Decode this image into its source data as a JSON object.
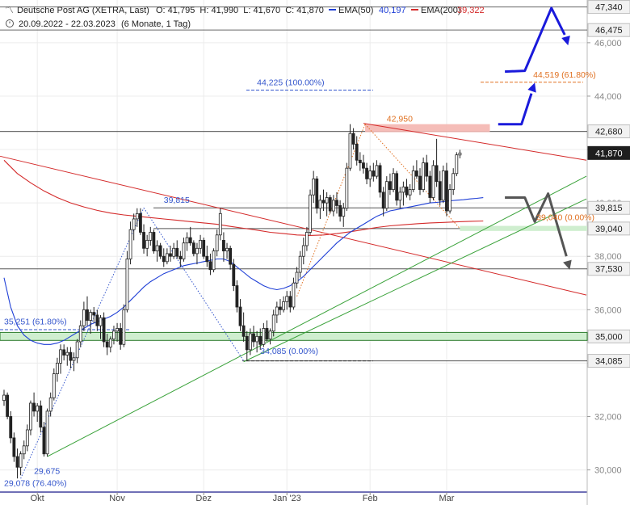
{
  "header": {
    "instrument": "Deutsche Post AG (XETRA, Last)",
    "ohlc": "O: 41,795  H: 41,990  L: 41,670  C: 41,870",
    "ema50_label": "EMA(50)",
    "ema50_value": "40,197",
    "ema200_label": "EMA(200)",
    "ema200_value": "39,322",
    "period": "20.09.2022 - 22.03.2023",
    "range": "(6 Monate, 1 Tag)"
  },
  "colors": {
    "up": "#ffffff",
    "down": "#222222",
    "ema50": "#1f3fd6",
    "ema200": "#d42a2a",
    "support": "#3aa23a",
    "resistance": "#d42a2a",
    "fib": "#3355cc",
    "fib_orange": "#e07020",
    "scenario_bull": "#1a1adb",
    "scenario_bear": "#555555",
    "level_line": "#555555"
  },
  "chart_data": {
    "type": "candlestick",
    "ylim": [
      29.2,
      47.6
    ],
    "xlim": [
      0,
      180
    ],
    "y_ticks": [
      30,
      32,
      34,
      36,
      38,
      40,
      42,
      44,
      46
    ],
    "y_tick_labels": [
      "30,000",
      "32,000",
      "34,000",
      "36,000",
      "38,000",
      "40,000",
      "42,000",
      "44,000",
      "46,000"
    ],
    "x_ticks": [
      {
        "x": 10,
        "label": "Okt"
      },
      {
        "x": 34,
        "label": "Nov"
      },
      {
        "x": 60,
        "label": "Dez"
      },
      {
        "x": 85,
        "label": "Jan '23"
      },
      {
        "x": 110,
        "label": "Feb"
      },
      {
        "x": 133,
        "label": "Mar"
      }
    ],
    "price_labels": [
      {
        "label": "47,340",
        "y": 47.34,
        "style": "level"
      },
      {
        "label": "46,475",
        "y": 46.475,
        "style": "level"
      },
      {
        "label": "42,680",
        "y": 42.68,
        "style": "level"
      },
      {
        "label": "41,870",
        "y": 41.87,
        "style": "current"
      },
      {
        "label": "39,815",
        "y": 39.815,
        "style": "level"
      },
      {
        "label": "39,040",
        "y": 39.04,
        "style": "level"
      },
      {
        "label": "37,530",
        "y": 37.53,
        "style": "level"
      },
      {
        "label": "35,000",
        "y": 35.0,
        "style": "level"
      },
      {
        "label": "34,085",
        "y": 34.085,
        "style": "level"
      }
    ],
    "annotations": [
      {
        "text": "44,225 (100.00%)",
        "x": 76,
        "y": 44.4,
        "color": "fib"
      },
      {
        "text": "44,519 (61.80%)",
        "x": 159,
        "y": 44.7,
        "color": "fib_orange"
      },
      {
        "text": "42,950",
        "x": 115,
        "y": 43.05,
        "color": "fib_orange"
      },
      {
        "text": "39,815",
        "x": 48,
        "y": 40.0,
        "color": "fib"
      },
      {
        "text": "39,040 (0.00%)",
        "x": 160,
        "y": 39.35,
        "color": "fib_orange"
      },
      {
        "text": "35,251 (61.80%)",
        "x": 1,
        "y": 35.45,
        "color": "fib"
      },
      {
        "text": "34,085 (0.00%)",
        "x": 77,
        "y": 34.35,
        "color": "fib"
      },
      {
        "text": "29,675",
        "x": 9,
        "y": 29.85,
        "color": "fib"
      },
      {
        "text": "29,078 (76.40%)",
        "x": 1,
        "y": 29.4,
        "color": "fib"
      }
    ],
    "candles": [
      [
        32.6,
        33.0,
        32.4,
        32.8
      ],
      [
        32.8,
        32.9,
        31.9,
        32.0
      ],
      [
        32.0,
        32.2,
        31.0,
        31.2
      ],
      [
        31.2,
        31.4,
        30.3,
        30.5
      ],
      [
        30.5,
        30.8,
        29.68,
        30.1
      ],
      [
        30.1,
        30.7,
        29.8,
        30.6
      ],
      [
        30.6,
        31.1,
        30.4,
        30.9
      ],
      [
        30.9,
        31.7,
        30.7,
        31.5
      ],
      [
        31.5,
        32.6,
        31.3,
        32.5
      ],
      [
        32.5,
        32.9,
        32.0,
        32.2
      ],
      [
        32.2,
        32.5,
        31.8,
        32.4
      ],
      [
        32.4,
        32.6,
        31.4,
        31.6
      ],
      [
        31.6,
        31.8,
        30.5,
        30.6
      ],
      [
        30.6,
        32.3,
        30.5,
        32.2
      ],
      [
        32.2,
        32.9,
        32.0,
        32.7
      ],
      [
        32.7,
        33.8,
        32.6,
        33.6
      ],
      [
        33.6,
        34.2,
        33.3,
        34.0
      ],
      [
        34.0,
        34.7,
        33.6,
        34.5
      ],
      [
        34.5,
        34.7,
        34.1,
        34.3
      ],
      [
        34.3,
        34.6,
        33.9,
        34.4
      ],
      [
        34.4,
        34.6,
        33.8,
        34.1
      ],
      [
        34.1,
        34.4,
        33.7,
        34.2
      ],
      [
        34.2,
        34.9,
        34.0,
        34.8
      ],
      [
        34.8,
        35.6,
        34.6,
        35.4
      ],
      [
        35.4,
        36.3,
        35.2,
        36.0
      ],
      [
        36.0,
        36.5,
        35.4,
        35.6
      ],
      [
        35.6,
        36.0,
        35.1,
        35.9
      ],
      [
        35.9,
        36.1,
        35.5,
        35.8
      ],
      [
        35.8,
        36.0,
        35.2,
        35.4
      ],
      [
        35.4,
        35.8,
        34.9,
        35.7
      ],
      [
        35.7,
        35.9,
        34.6,
        34.8
      ],
      [
        34.8,
        35.1,
        34.3,
        34.6
      ],
      [
        34.6,
        35.0,
        34.4,
        34.9
      ],
      [
        34.9,
        35.4,
        34.7,
        35.2
      ],
      [
        35.2,
        35.5,
        34.8,
        35.3
      ],
      [
        35.3,
        35.5,
        34.5,
        34.7
      ],
      [
        34.7,
        36.2,
        34.6,
        36.0
      ],
      [
        36.0,
        38.2,
        35.9,
        37.9
      ],
      [
        37.9,
        39.3,
        37.7,
        39.0
      ],
      [
        39.0,
        39.6,
        38.6,
        39.4
      ],
      [
        39.4,
        39.8,
        39.1,
        39.6
      ],
      [
        39.6,
        39.8,
        38.8,
        38.9
      ],
      [
        38.9,
        39.2,
        38.1,
        38.3
      ],
      [
        38.3,
        38.8,
        38.0,
        38.6
      ],
      [
        38.6,
        39.1,
        38.4,
        38.9
      ],
      [
        38.9,
        39.0,
        38.1,
        38.2
      ],
      [
        38.2,
        38.6,
        37.8,
        38.4
      ],
      [
        38.4,
        38.5,
        37.9,
        38.0
      ],
      [
        38.0,
        38.3,
        37.6,
        37.8
      ],
      [
        37.8,
        38.3,
        37.7,
        38.1
      ],
      [
        38.1,
        38.4,
        37.8,
        38.0
      ],
      [
        38.0,
        38.5,
        37.9,
        38.3
      ],
      [
        38.3,
        38.6,
        37.9,
        38.0
      ],
      [
        38.0,
        38.2,
        37.6,
        37.9
      ],
      [
        37.9,
        38.7,
        37.8,
        38.5
      ],
      [
        38.5,
        38.9,
        38.2,
        38.7
      ],
      [
        38.7,
        39.1,
        38.4,
        38.5
      ],
      [
        38.5,
        38.6,
        38.0,
        38.1
      ],
      [
        38.1,
        38.5,
        37.7,
        38.3
      ],
      [
        38.3,
        38.8,
        38.1,
        38.6
      ],
      [
        38.6,
        38.7,
        37.9,
        38.0
      ],
      [
        38.0,
        38.4,
        37.6,
        37.8
      ],
      [
        37.8,
        38.1,
        37.3,
        37.5
      ],
      [
        37.5,
        38.3,
        37.4,
        38.2
      ],
      [
        38.2,
        39.0,
        38.0,
        38.8
      ],
      [
        38.8,
        39.8,
        38.6,
        39.6
      ],
      [
        38.6,
        38.9,
        37.8,
        38.2
      ],
      [
        38.2,
        38.5,
        37.9,
        38.3
      ],
      [
        38.3,
        38.4,
        37.5,
        37.7
      ],
      [
        37.7,
        37.9,
        36.7,
        36.9
      ],
      [
        36.9,
        37.1,
        35.9,
        36.1
      ],
      [
        36.1,
        36.4,
        35.2,
        35.4
      ],
      [
        35.4,
        35.9,
        34.8,
        35.0
      ],
      [
        35.0,
        35.2,
        34.09,
        34.5
      ],
      [
        34.5,
        35.3,
        34.3,
        35.1
      ],
      [
        35.1,
        35.4,
        34.6,
        34.8
      ],
      [
        34.8,
        35.2,
        34.4,
        35.0
      ],
      [
        35.0,
        35.3,
        34.5,
        34.7
      ],
      [
        34.7,
        35.5,
        34.6,
        35.3
      ],
      [
        35.3,
        35.6,
        34.8,
        34.9
      ],
      [
        34.9,
        35.3,
        34.7,
        35.2
      ],
      [
        35.2,
        36.0,
        35.0,
        35.8
      ],
      [
        35.8,
        36.3,
        35.5,
        36.1
      ],
      [
        36.1,
        36.4,
        35.8,
        36.0
      ],
      [
        36.0,
        36.5,
        35.9,
        36.3
      ],
      [
        36.3,
        36.7,
        36.0,
        36.5
      ],
      [
        36.5,
        36.7,
        35.9,
        36.1
      ],
      [
        36.1,
        37.2,
        36.0,
        37.0
      ],
      [
        37.0,
        37.6,
        36.8,
        37.4
      ],
      [
        37.4,
        38.2,
        37.2,
        38.0
      ],
      [
        38.0,
        38.7,
        37.7,
        38.4
      ],
      [
        38.4,
        39.1,
        38.2,
        38.9
      ],
      [
        38.9,
        40.5,
        38.8,
        40.3
      ],
      [
        40.3,
        41.2,
        40.0,
        40.9
      ],
      [
        40.9,
        41.0,
        39.6,
        39.8
      ],
      [
        39.8,
        40.3,
        39.4,
        40.1
      ],
      [
        40.1,
        40.5,
        39.7,
        40.0
      ],
      [
        40.0,
        40.4,
        39.5,
        40.2
      ],
      [
        40.2,
        40.3,
        39.6,
        39.7
      ],
      [
        39.7,
        40.3,
        39.5,
        40.1
      ],
      [
        40.1,
        40.4,
        39.6,
        39.9
      ],
      [
        39.9,
        40.1,
        39.3,
        39.5
      ],
      [
        39.5,
        40.0,
        39.1,
        39.8
      ],
      [
        39.8,
        41.5,
        39.7,
        41.3
      ],
      [
        41.3,
        42.95,
        41.2,
        42.6
      ],
      [
        42.6,
        42.8,
        42.0,
        42.2
      ],
      [
        42.2,
        42.5,
        41.4,
        41.6
      ],
      [
        41.6,
        41.9,
        41.2,
        41.5
      ],
      [
        41.5,
        41.8,
        41.1,
        41.3
      ],
      [
        41.3,
        41.5,
        40.7,
        40.9
      ],
      [
        40.9,
        41.4,
        40.6,
        41.2
      ],
      [
        41.2,
        41.5,
        40.8,
        41.0
      ],
      [
        41.0,
        41.6,
        40.9,
        41.4
      ],
      [
        41.4,
        41.5,
        40.2,
        40.4
      ],
      [
        40.4,
        40.6,
        39.5,
        39.8
      ],
      [
        39.8,
        41.0,
        39.7,
        40.8
      ],
      [
        40.8,
        41.1,
        40.3,
        40.5
      ],
      [
        40.5,
        41.3,
        40.4,
        41.1
      ],
      [
        41.1,
        41.2,
        39.9,
        40.1
      ],
      [
        40.1,
        40.6,
        39.8,
        40.4
      ],
      [
        40.4,
        40.8,
        39.9,
        40.6
      ],
      [
        40.6,
        40.9,
        40.2,
        40.3
      ],
      [
        40.3,
        40.7,
        40.1,
        40.5
      ],
      [
        40.5,
        41.4,
        40.4,
        41.2
      ],
      [
        41.2,
        41.6,
        40.9,
        41.0
      ],
      [
        41.0,
        41.3,
        40.3,
        40.5
      ],
      [
        40.5,
        41.7,
        40.4,
        41.5
      ],
      [
        41.5,
        41.8,
        40.8,
        41.0
      ],
      [
        41.0,
        41.2,
        40.0,
        40.2
      ],
      [
        40.2,
        41.6,
        40.1,
        41.4
      ],
      [
        41.4,
        42.4,
        40.6,
        40.8
      ],
      [
        40.8,
        41.2,
        39.9,
        40.1
      ],
      [
        40.1,
        41.4,
        40.0,
        41.2
      ],
      [
        41.2,
        41.5,
        39.5,
        39.7
      ],
      [
        39.7,
        40.7,
        39.6,
        40.5
      ],
      [
        40.5,
        41.3,
        40.3,
        41.1
      ],
      [
        41.1,
        41.9,
        41.0,
        41.8
      ],
      [
        41.795,
        41.99,
        41.67,
        41.87
      ]
    ],
    "ema50": [
      [
        0,
        37.2
      ],
      [
        2,
        36.1
      ],
      [
        4,
        35.4
      ],
      [
        6,
        35.05
      ],
      [
        8,
        34.85
      ],
      [
        10,
        34.75
      ],
      [
        12,
        34.7
      ],
      [
        14,
        34.7
      ],
      [
        16,
        34.75
      ],
      [
        18,
        34.85
      ],
      [
        20,
        35.0
      ],
      [
        22,
        35.15
      ],
      [
        24,
        35.3
      ],
      [
        26,
        35.45
      ],
      [
        28,
        35.55
      ],
      [
        30,
        35.65
      ],
      [
        32,
        35.75
      ],
      [
        34,
        35.9
      ],
      [
        36,
        36.1
      ],
      [
        38,
        36.35
      ],
      [
        40,
        36.6
      ],
      [
        42,
        36.85
      ],
      [
        44,
        37.05
      ],
      [
        46,
        37.2
      ],
      [
        48,
        37.35
      ],
      [
        50,
        37.45
      ],
      [
        52,
        37.55
      ],
      [
        54,
        37.65
      ],
      [
        56,
        37.7
      ],
      [
        58,
        37.75
      ],
      [
        60,
        37.8
      ],
      [
        62,
        37.85
      ],
      [
        64,
        37.9
      ],
      [
        66,
        37.9
      ],
      [
        68,
        37.8
      ],
      [
        70,
        37.6
      ],
      [
        72,
        37.4
      ],
      [
        74,
        37.2
      ],
      [
        76,
        37.05
      ],
      [
        78,
        36.9
      ],
      [
        80,
        36.8
      ],
      [
        82,
        36.75
      ],
      [
        84,
        36.8
      ],
      [
        86,
        36.9
      ],
      [
        88,
        37.05
      ],
      [
        90,
        37.25
      ],
      [
        92,
        37.5
      ],
      [
        94,
        37.75
      ],
      [
        96,
        38.0
      ],
      [
        98,
        38.25
      ],
      [
        100,
        38.5
      ],
      [
        102,
        38.7
      ],
      [
        104,
        38.9
      ],
      [
        106,
        39.05
      ],
      [
        108,
        39.2
      ],
      [
        110,
        39.35
      ],
      [
        112,
        39.5
      ],
      [
        114,
        39.6
      ],
      [
        116,
        39.7
      ],
      [
        118,
        39.75
      ],
      [
        120,
        39.8
      ],
      [
        122,
        39.85
      ],
      [
        124,
        39.9
      ],
      [
        126,
        39.95
      ],
      [
        128,
        40.0
      ],
      [
        130,
        40.02
      ],
      [
        132,
        40.05
      ],
      [
        134,
        40.08
      ],
      [
        136,
        40.1
      ],
      [
        138,
        40.12
      ],
      [
        140,
        40.15
      ],
      [
        142,
        40.17
      ],
      [
        144,
        40.197
      ]
    ],
    "ema200": [
      [
        0,
        41.6
      ],
      [
        4,
        41.1
      ],
      [
        8,
        40.75
      ],
      [
        12,
        40.45
      ],
      [
        16,
        40.2
      ],
      [
        20,
        40.0
      ],
      [
        24,
        39.85
      ],
      [
        28,
        39.72
      ],
      [
        32,
        39.62
      ],
      [
        36,
        39.55
      ],
      [
        40,
        39.5
      ],
      [
        44,
        39.45
      ],
      [
        48,
        39.4
      ],
      [
        52,
        39.35
      ],
      [
        56,
        39.3
      ],
      [
        60,
        39.25
      ],
      [
        64,
        39.2
      ],
      [
        68,
        39.12
      ],
      [
        72,
        39.05
      ],
      [
        76,
        38.98
      ],
      [
        80,
        38.9
      ],
      [
        84,
        38.85
      ],
      [
        88,
        38.8
      ],
      [
        92,
        38.78
      ],
      [
        96,
        38.8
      ],
      [
        100,
        38.85
      ],
      [
        104,
        38.92
      ],
      [
        108,
        39.0
      ],
      [
        112,
        39.08
      ],
      [
        116,
        39.14
      ],
      [
        120,
        39.18
      ],
      [
        124,
        39.22
      ],
      [
        128,
        39.25
      ],
      [
        132,
        39.27
      ],
      [
        136,
        39.29
      ],
      [
        140,
        39.31
      ],
      [
        144,
        39.322
      ]
    ]
  }
}
